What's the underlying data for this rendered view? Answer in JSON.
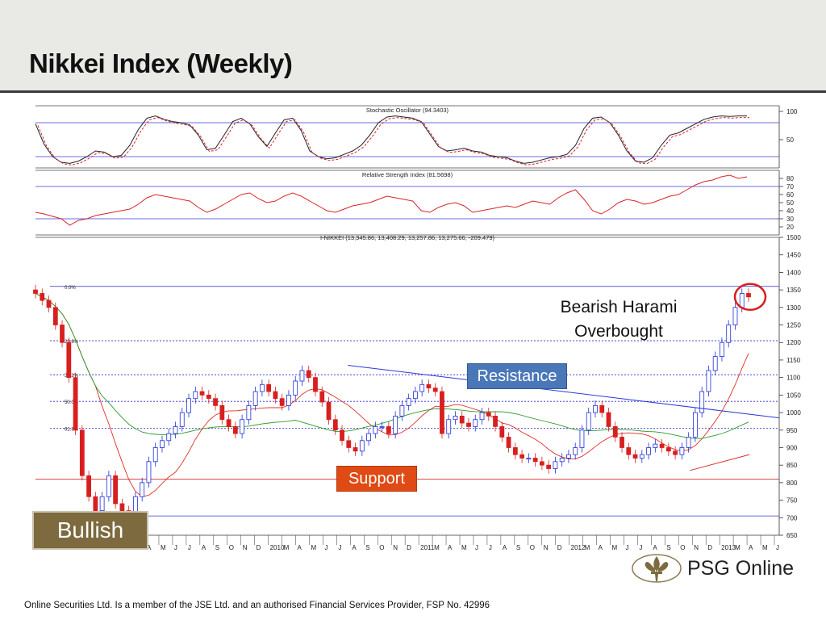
{
  "page": {
    "title": "Nikkei Index (Weekly)",
    "footer": "Online Securities Ltd. Is a member of the JSE Ltd. and an authorised Financial Services Provider, FSP No. 42996",
    "logo_text": "PSG Online",
    "colors": {
      "header_band": "#e9e9e6",
      "bullish": "#7d6a3e",
      "resistance": "#4a77b8",
      "support": "#e04a14",
      "up_candle": "#1f2fd8",
      "down_candle": "#d81f1f",
      "ma_fast": "#e0302a",
      "ma_slow": "#2a9a2a"
    }
  },
  "annotations": {
    "bullish": "Bullish",
    "resistance": "Resistance",
    "support": "Support",
    "harami_line1": "Bearish Harami",
    "harami_line2": "Overbought"
  },
  "chart_data": [
    {
      "type": "line",
      "title": "Stochastic Oscillator (94.3403)",
      "ylim": [
        0,
        110
      ],
      "y_ticks": [
        "100",
        "50"
      ],
      "reference_levels": [
        80,
        20
      ],
      "series": [
        {
          "values": [
            78,
            42,
            20,
            10,
            8,
            12,
            20,
            30,
            28,
            20,
            22,
            40,
            68,
            88,
            92,
            86,
            82,
            80,
            76,
            58,
            32,
            35,
            58,
            82,
            88,
            78,
            55,
            38,
            62,
            85,
            88,
            66,
            30,
            20,
            16,
            18,
            24,
            30,
            40,
            58,
            80,
            90,
            92,
            90,
            88,
            82,
            60,
            38,
            30,
            32,
            35,
            30,
            28,
            22,
            20,
            18,
            12,
            8,
            10,
            14,
            18,
            20,
            24,
            40,
            70,
            88,
            90,
            80,
            58,
            30,
            12,
            10,
            18,
            40,
            58,
            62,
            70,
            78,
            86,
            90,
            92,
            91,
            92,
            92
          ]
        }
      ]
    },
    {
      "type": "line",
      "title": "Relative Strength Index (81.5698)",
      "ylim": [
        10,
        90
      ],
      "y_ticks": [
        "80",
        "70",
        "60",
        "50",
        "40",
        "30",
        "20"
      ],
      "reference_levels": [
        70,
        30
      ],
      "series": [
        {
          "values": [
            38,
            36,
            33,
            30,
            22,
            28,
            30,
            34,
            36,
            38,
            40,
            42,
            48,
            56,
            60,
            58,
            56,
            54,
            52,
            44,
            38,
            42,
            48,
            54,
            60,
            62,
            55,
            50,
            52,
            58,
            62,
            58,
            52,
            46,
            40,
            38,
            42,
            46,
            48,
            50,
            54,
            58,
            56,
            54,
            52,
            40,
            38,
            44,
            48,
            50,
            46,
            38,
            40,
            42,
            44,
            46,
            44,
            48,
            52,
            50,
            48,
            56,
            62,
            66,
            54,
            40,
            36,
            42,
            50,
            54,
            52,
            48,
            50,
            54,
            58,
            60,
            66,
            72,
            76,
            78,
            82,
            84,
            80,
            82
          ]
        }
      ]
    },
    {
      "type": "candlestick",
      "title": "I-NIKKEI (13,345.86, 13,408.29, 13,257.86, 13,275.66, -209.479)",
      "ylim": [
        650,
        1500
      ],
      "y_ticks": [
        "1500",
        "1450",
        "1400",
        "1350",
        "1300",
        "1250",
        "1200",
        "1150",
        "1100",
        "1050",
        "1000",
        "950",
        "900",
        "850",
        "800",
        "750",
        "700",
        "650"
      ],
      "x_ticks": [
        "A",
        "M",
        "J",
        "J",
        "A",
        "S",
        "O",
        "N",
        "D",
        "2010",
        "M",
        "A",
        "M",
        "J",
        "J",
        "A",
        "S",
        "O",
        "N",
        "D",
        "2011",
        "M",
        "A",
        "M",
        "J",
        "J",
        "A",
        "S",
        "O",
        "N",
        "D",
        "2012",
        "M",
        "A",
        "M",
        "J",
        "J",
        "A",
        "S",
        "O",
        "N",
        "D",
        "2013",
        "M",
        "A",
        "M",
        "J"
      ],
      "fibonacci_labels": [
        "0.0%",
        "23.6%",
        "38.2%",
        "50.0%",
        "61.8%"
      ],
      "fibonacci_levels": [
        1360,
        1205,
        1108,
        1032,
        955
      ],
      "horizontal_levels": [
        810,
        705
      ],
      "resistance_line": {
        "from": [
          0.42,
          1135
        ],
        "to": [
          1.0,
          985
        ]
      },
      "support_trendline": {
        "from": [
          0.88,
          835
        ],
        "to": [
          0.96,
          880
        ]
      },
      "close": [
        1340,
        1320,
        1300,
        1250,
        1200,
        1100,
        950,
        820,
        760,
        720,
        760,
        820,
        740,
        720,
        700,
        760,
        800,
        860,
        900,
        920,
        940,
        960,
        1000,
        1040,
        1060,
        1050,
        1040,
        1020,
        980,
        960,
        940,
        980,
        1020,
        1060,
        1080,
        1060,
        1040,
        1020,
        1050,
        1090,
        1120,
        1100,
        1060,
        1030,
        980,
        950,
        920,
        900,
        890,
        920,
        940,
        960,
        960,
        940,
        990,
        1020,
        1040,
        1060,
        1080,
        1070,
        1060,
        940,
        980,
        990,
        970,
        960,
        980,
        1000,
        990,
        960,
        930,
        900,
        880,
        870,
        870,
        860,
        850,
        840,
        860,
        870,
        880,
        900,
        950,
        1000,
        1020,
        1000,
        960,
        930,
        900,
        880,
        870,
        880,
        900,
        910,
        900,
        890,
        880,
        900,
        930,
        1000,
        1060,
        1120,
        1160,
        1200,
        1250,
        1300,
        1340,
        1330
      ]
    }
  ]
}
